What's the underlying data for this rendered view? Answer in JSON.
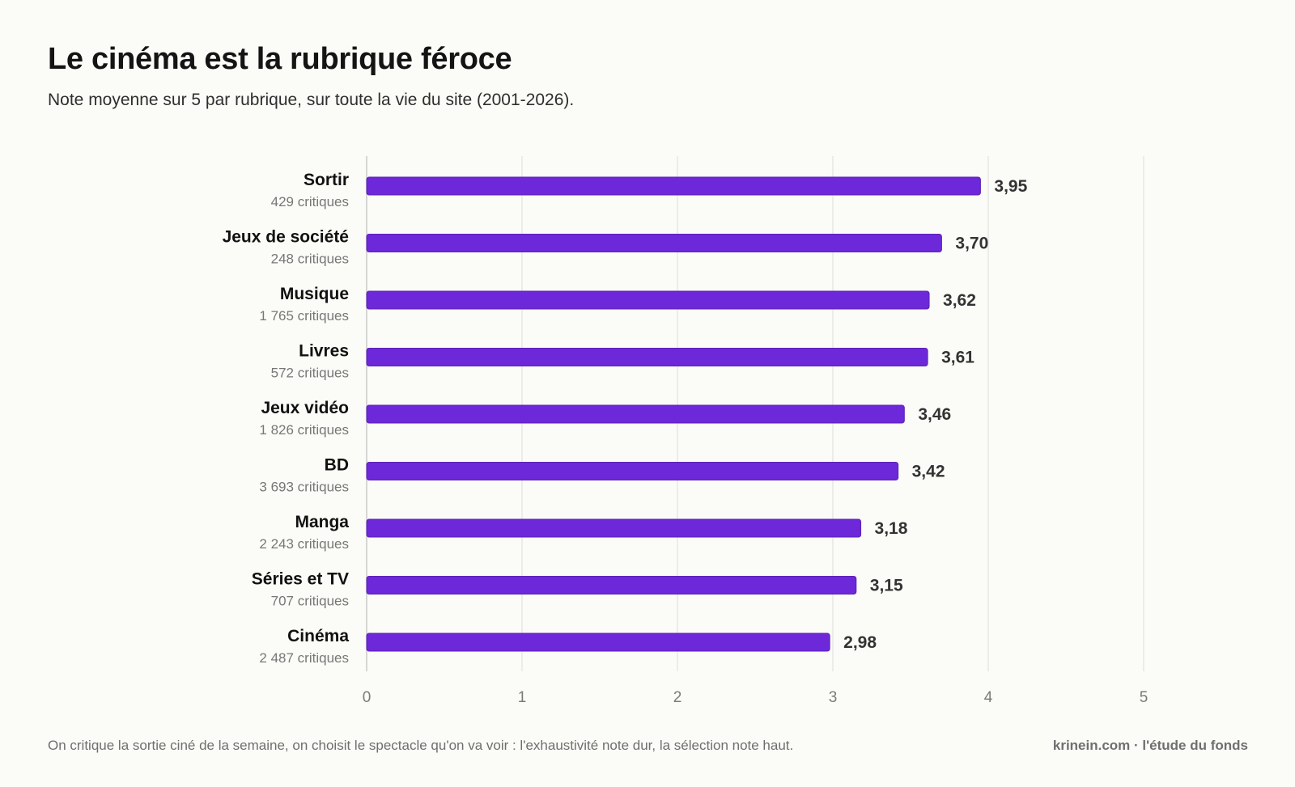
{
  "header": {
    "title": "Le cinéma est la rubrique féroce",
    "subtitle": "Note moyenne sur 5 par rubrique, sur toute la vie du site (2001-2026)."
  },
  "footer": {
    "note": "On critique la sortie ciné de la semaine, on choisit le spectacle qu'on va voir : l'exhaustivité note dur, la sélection note haut.",
    "credit": "krinein.com · l'étude du fonds"
  },
  "colors": {
    "bar": "#6d28d9",
    "bar_stroke": "#5b21b6",
    "grid": "#dedede",
    "axis": "#c9c9c9",
    "value_label": "#333333",
    "category_label": "#111111",
    "count_label": "#777777",
    "tick_label": "#7a7a7a"
  },
  "chart_data": {
    "type": "bar",
    "orientation": "horizontal",
    "title": "Le cinéma est la rubrique féroce",
    "subtitle": "Note moyenne sur 5 par rubrique, sur toute la vie du site (2001-2026).",
    "xlabel": "",
    "ylabel": "",
    "xlim": [
      0,
      5
    ],
    "x_ticks": [
      0,
      1,
      2,
      3,
      4,
      5
    ],
    "grid": "vertical",
    "legend": "none",
    "categories": [
      "Sortir",
      "Jeux de société",
      "Musique",
      "Livres",
      "Jeux vidéo",
      "BD",
      "Manga",
      "Séries et TV",
      "Cinéma"
    ],
    "counts": [
      "429 critiques",
      "248 critiques",
      "1 765 critiques",
      "572 critiques",
      "1 826 critiques",
      "3 693 critiques",
      "2 243 critiques",
      "707 critiques",
      "2 487 critiques"
    ],
    "values": [
      3.95,
      3.7,
      3.62,
      3.61,
      3.46,
      3.42,
      3.18,
      3.15,
      2.98
    ],
    "value_labels": [
      "3,95",
      "3,70",
      "3,62",
      "3,61",
      "3,46",
      "3,42",
      "3,18",
      "3,15",
      "2,98"
    ]
  }
}
